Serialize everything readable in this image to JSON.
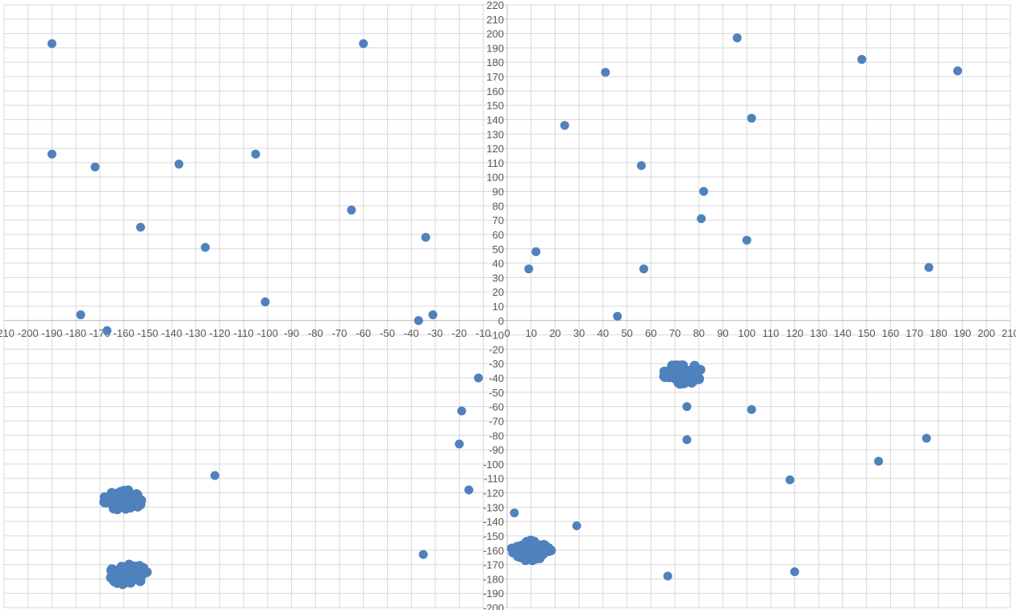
{
  "chart_data": {
    "type": "scatter",
    "title": "",
    "xlabel": "",
    "ylabel": "",
    "xlim": [
      -210,
      210
    ],
    "ylim": [
      -200,
      220
    ],
    "x_tick_step": 10,
    "y_tick_step": 10,
    "grid": true,
    "legend": "none",
    "series_color": "#4F81BD",
    "series": [
      {
        "points": [
          {
            "x": -190,
            "y": 193
          },
          {
            "x": -60,
            "y": 193
          },
          {
            "x": 96,
            "y": 197
          },
          {
            "x": 148,
            "y": 182
          },
          {
            "x": 188,
            "y": 174
          },
          {
            "x": 41,
            "y": 173
          },
          {
            "x": 102,
            "y": 141
          },
          {
            "x": 24,
            "y": 136
          },
          {
            "x": -190,
            "y": 116
          },
          {
            "x": -105,
            "y": 116
          },
          {
            "x": -137,
            "y": 109
          },
          {
            "x": -172,
            "y": 107
          },
          {
            "x": 56,
            "y": 108
          },
          {
            "x": 82,
            "y": 90
          },
          {
            "x": -65,
            "y": 77
          },
          {
            "x": 81,
            "y": 71
          },
          {
            "x": -153,
            "y": 65
          },
          {
            "x": -34,
            "y": 58
          },
          {
            "x": 100,
            "y": 56
          },
          {
            "x": -126,
            "y": 51
          },
          {
            "x": 12,
            "y": 48
          },
          {
            "x": 9,
            "y": 36
          },
          {
            "x": 57,
            "y": 36
          },
          {
            "x": 176,
            "y": 37
          },
          {
            "x": -101,
            "y": 13
          },
          {
            "x": -178,
            "y": 4
          },
          {
            "x": -31,
            "y": 4
          },
          {
            "x": 46,
            "y": 3
          },
          {
            "x": -37,
            "y": 0
          },
          {
            "x": -167,
            "y": -7
          },
          {
            "x": -12,
            "y": -40
          },
          {
            "x": 75,
            "y": -60
          },
          {
            "x": 102,
            "y": -62
          },
          {
            "x": -19,
            "y": -63
          },
          {
            "x": 75,
            "y": -83
          },
          {
            "x": 175,
            "y": -82
          },
          {
            "x": -20,
            "y": -86
          },
          {
            "x": 155,
            "y": -98
          },
          {
            "x": -122,
            "y": -108
          },
          {
            "x": 118,
            "y": -111
          },
          {
            "x": -16,
            "y": -118
          },
          {
            "x": 3,
            "y": -134
          },
          {
            "x": 29,
            "y": -143
          },
          {
            "x": -35,
            "y": -163
          },
          {
            "x": 67,
            "y": -178
          },
          {
            "x": 120,
            "y": -175
          }
        ],
        "clusters": [
          {
            "x": 73,
            "y": -37,
            "count": 60
          },
          {
            "x": -160,
            "y": -125,
            "count": 60
          },
          {
            "x": -158,
            "y": -177,
            "count": 60
          },
          {
            "x": 10,
            "y": -160,
            "count": 60
          }
        ]
      }
    ]
  }
}
